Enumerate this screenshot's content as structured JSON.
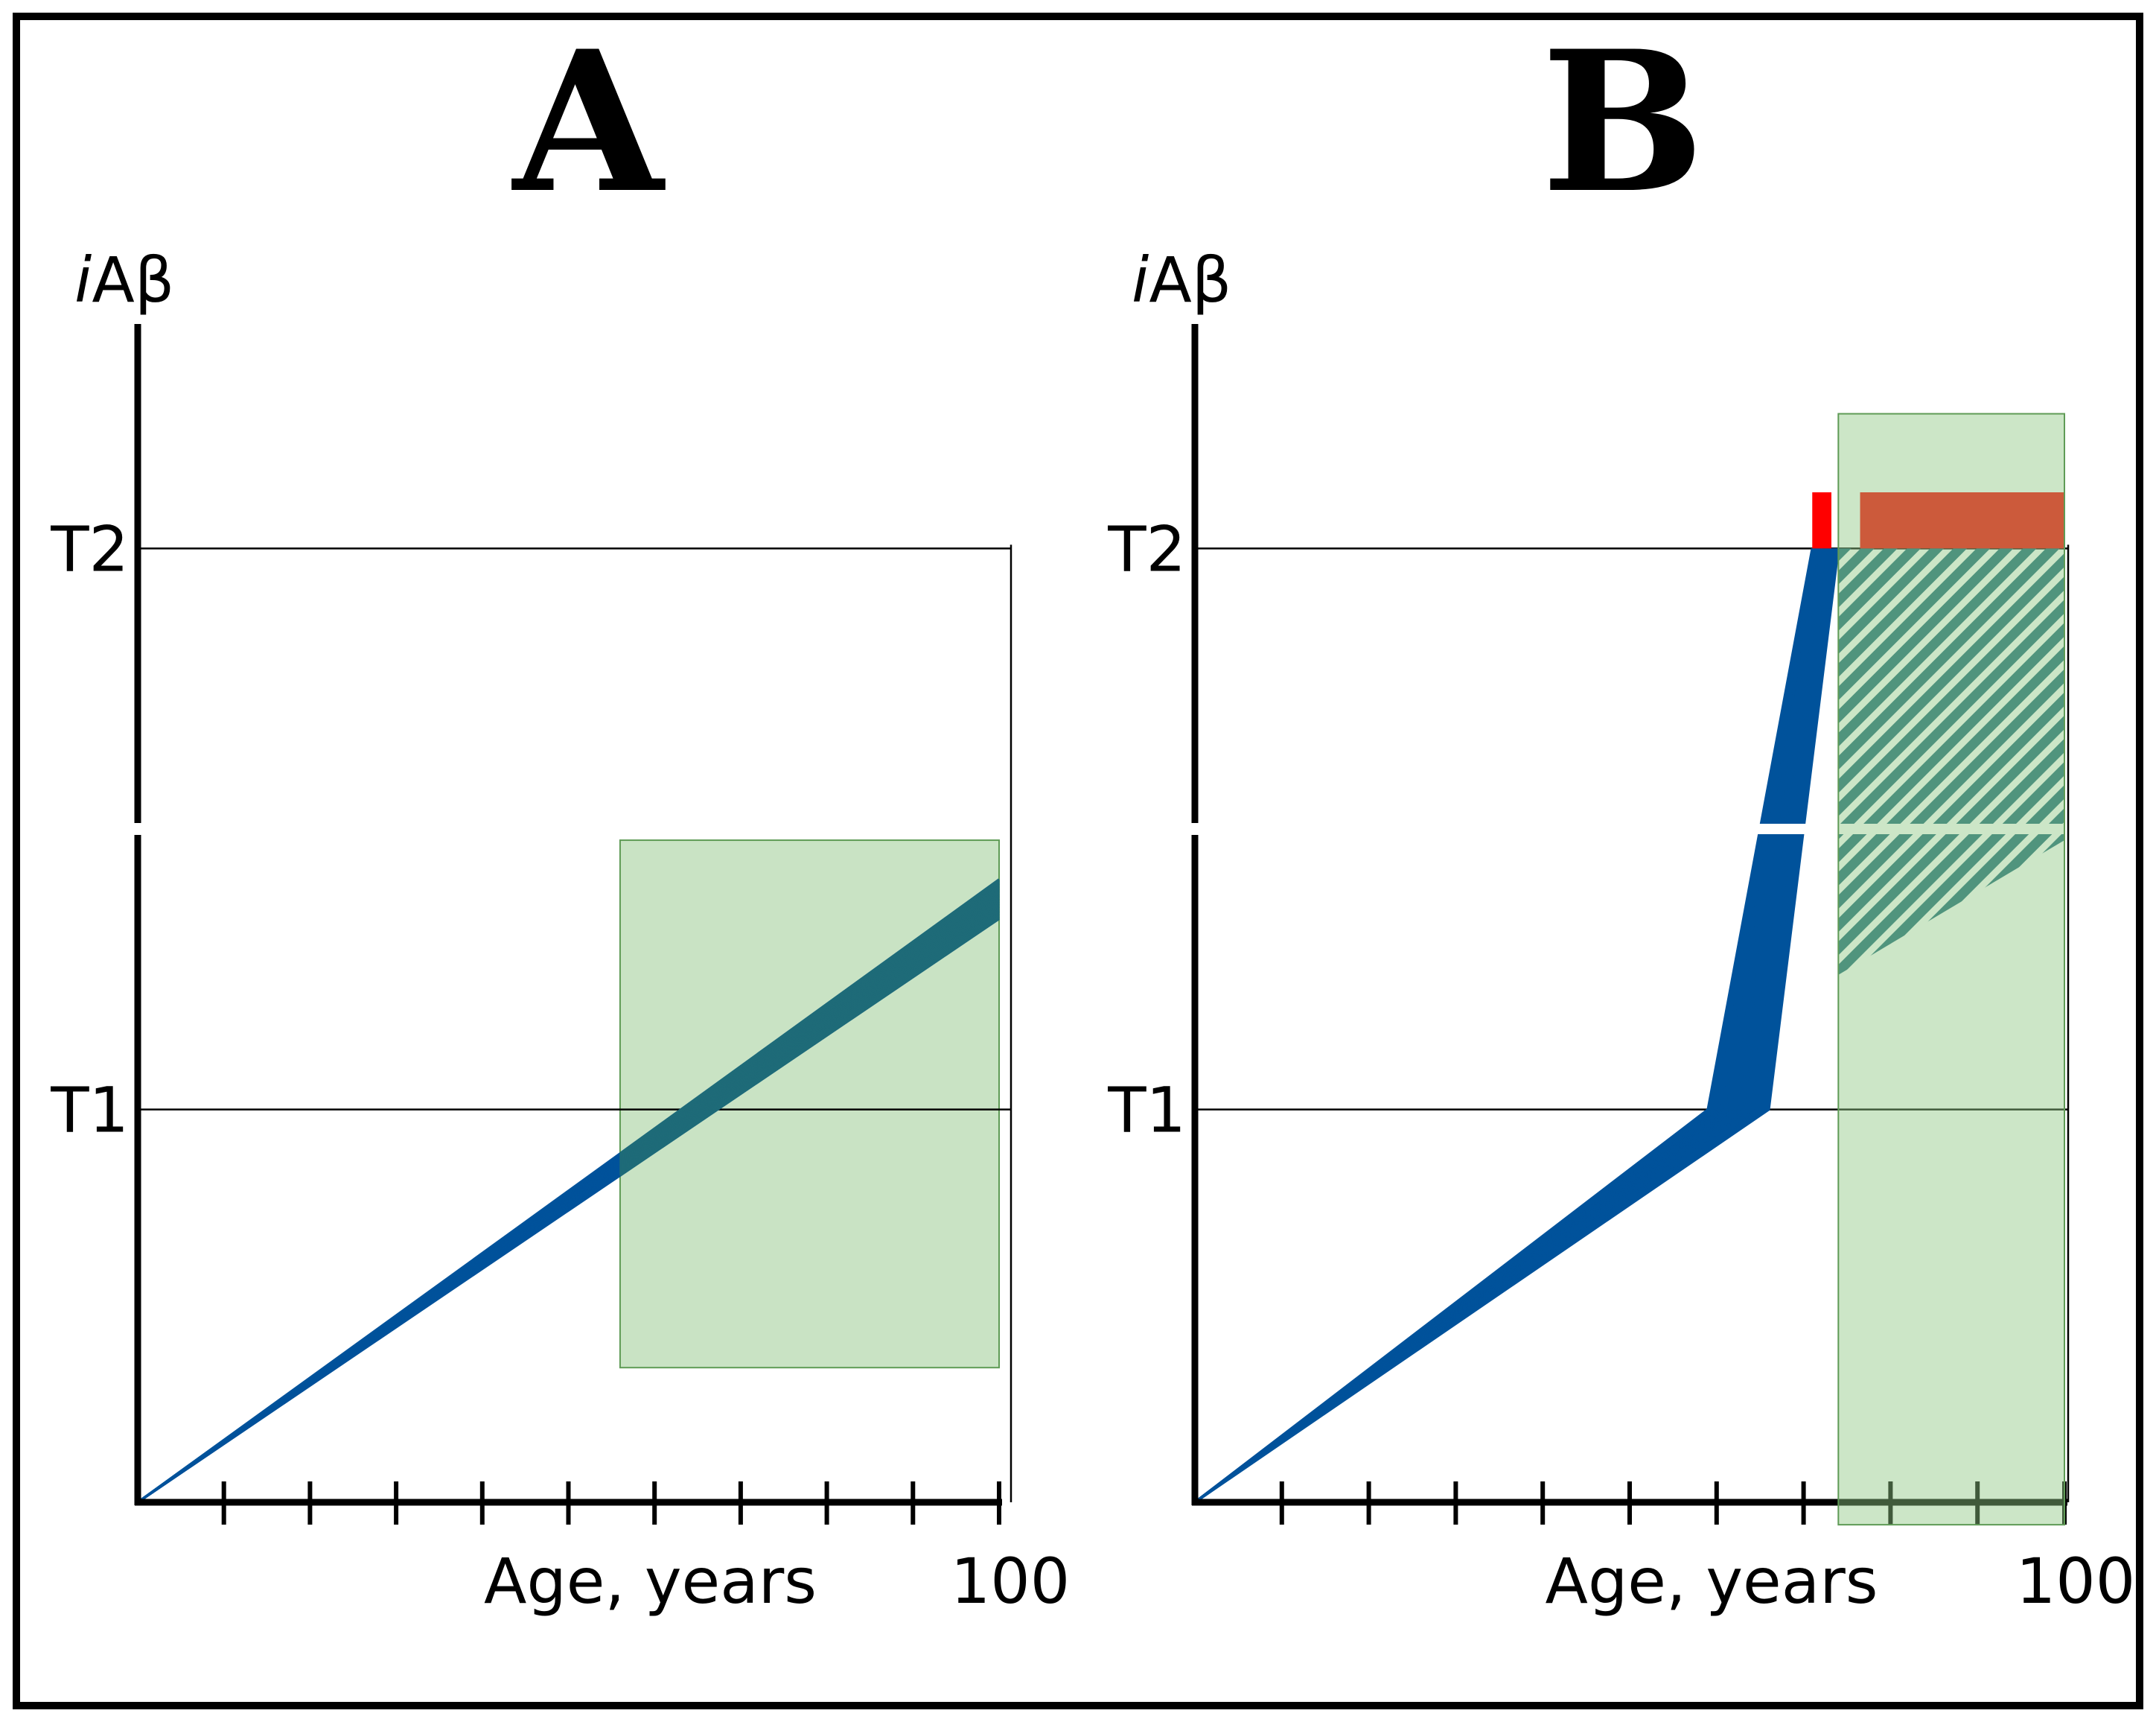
{
  "colors": {
    "trajectory": "#00529b",
    "zone": "#c9e3c4",
    "zone_border": "#5f9b56",
    "overlap": "#1e6b78",
    "hatch": "#1e6b78",
    "bar": "#ff0000",
    "frame": "#000000"
  },
  "chart_data": [
    {
      "panel": "A",
      "type": "line",
      "title": "A",
      "ylabel_italic": "i",
      "ylabel_rest": "Aβ",
      "xlabel": "Age, years",
      "xmax_label": "100",
      "xlim": [
        0,
        100
      ],
      "ylim": [
        0,
        1.05
      ],
      "y_thresholds": [
        {
          "label": "T1",
          "value": 0.35
        },
        {
          "label": "T2",
          "value": 0.85
        }
      ],
      "y_axis_break": 0.6,
      "x_ticks": [
        0,
        10,
        20,
        30,
        40,
        50,
        60,
        70,
        80,
        90,
        100
      ],
      "trajectories": {
        "count": 30,
        "x": [
          0,
          100
        ],
        "y_end_min": 0.52,
        "y_end_max": 0.555
      },
      "highlight_region": {
        "x": [
          56,
          100
        ],
        "y": [
          0.12,
          0.59
        ]
      }
    },
    {
      "panel": "B",
      "type": "line",
      "title": "B",
      "ylabel_italic": "i",
      "ylabel_rest": "Aβ",
      "xlabel": "Age, years",
      "xmax_label": "100",
      "xlim": [
        0,
        100
      ],
      "ylim": [
        0,
        1.05
      ],
      "y_thresholds": [
        {
          "label": "T1",
          "value": 0.35
        },
        {
          "label": "T2",
          "value": 0.85
        }
      ],
      "y_axis_break": 0.6,
      "x_ticks": [
        0,
        10,
        20,
        30,
        40,
        50,
        60,
        70,
        80,
        90,
        100
      ],
      "trajectories": {
        "count": 30,
        "t1_age_min": 59,
        "t1_age_max": 66,
        "t2_age_min": 71,
        "t2_age_max": 74
      },
      "hatched_region": {
        "x_start": 74,
        "x_end": 100,
        "y_top": 0.85,
        "y_bottom_start": 0.47,
        "y_bottom_end": 0.59
      },
      "red_bars": [
        {
          "x_start": 71,
          "x_end": 73.2,
          "y_start": 0.85,
          "y_end": 0.9
        },
        {
          "x_start": 76.5,
          "x_end": 100,
          "y_start": 0.85,
          "y_end": 0.9
        }
      ],
      "highlight_region": {
        "x": [
          74,
          100
        ],
        "y": [
          -0.02,
          0.97
        ]
      }
    }
  ]
}
